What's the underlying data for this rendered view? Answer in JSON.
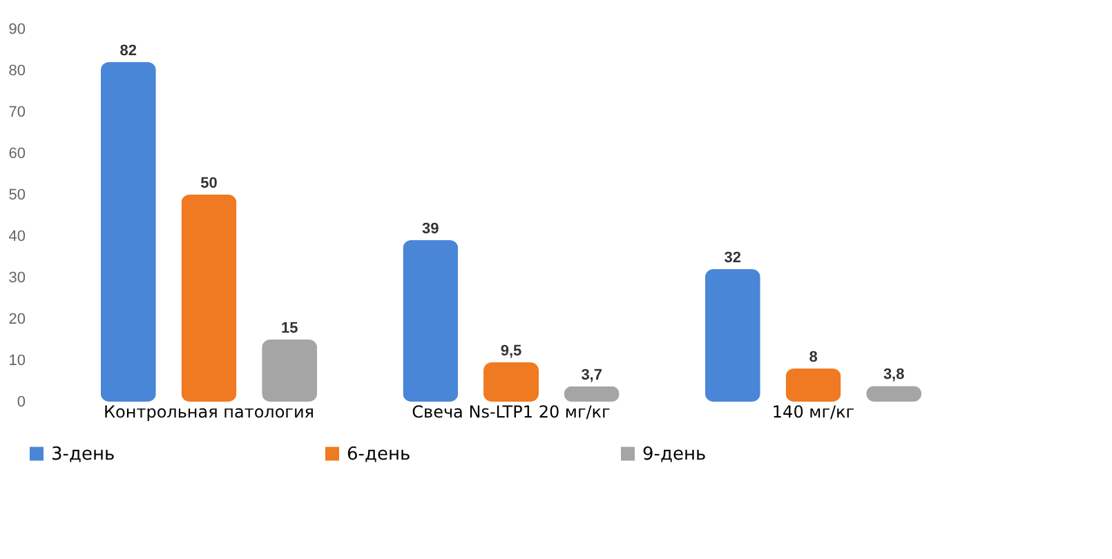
{
  "chart_data": {
    "type": "bar",
    "categories": [
      "Контрольная патология",
      "Свеча Ns-LTP1 20 мг/кг",
      "140 мг/кг"
    ],
    "series": [
      {
        "name": "3-день",
        "color": "#4a86d8",
        "values": [
          82,
          39,
          32
        ],
        "value_labels": [
          "82",
          "39",
          "32"
        ]
      },
      {
        "name": "6-день",
        "color": "#f07a22",
        "values": [
          50,
          9.5,
          8
        ],
        "value_labels": [
          "50",
          "9,5",
          "8"
        ]
      },
      {
        "name": "9-день",
        "color": "#a5a5a5",
        "values": [
          15,
          3.7,
          3.8
        ],
        "value_labels": [
          "15",
          "3,7",
          "3,8"
        ]
      }
    ],
    "ylim": [
      0,
      90
    ],
    "yticks": [
      0,
      10,
      20,
      30,
      40,
      50,
      60,
      70,
      80,
      90
    ],
    "grid": false,
    "legend": "bottom"
  }
}
